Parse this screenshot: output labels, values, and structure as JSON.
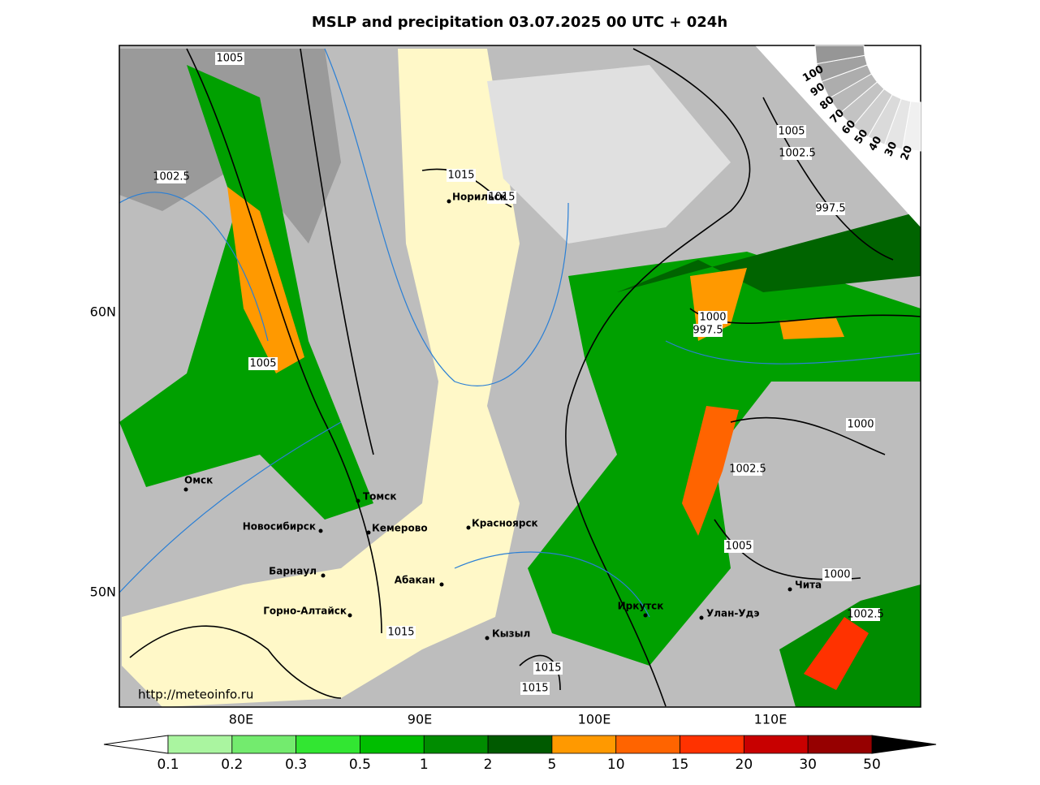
{
  "title": "MSLP and precipitation 03.07.2025 00 UTC + 024h",
  "lon_labels": [
    "80E",
    "90E",
    "100E",
    "110E"
  ],
  "lat_labels": [
    "60N",
    "50N"
  ],
  "cities": [
    "Норильск",
    "Омск",
    "Томск",
    "Новосибирск",
    "Кемерово",
    "Красноярск",
    "Барнаул",
    "Абакан",
    "Горно-Алтайск",
    "Кызыл",
    "Иркутск",
    "Улан-Удэ",
    "Чита"
  ],
  "isobar_labels": [
    1005,
    1002.5,
    1015,
    1015,
    1005,
    1005,
    1002.5,
    997.5,
    1000,
    997.5,
    1000,
    1002.5,
    1005,
    1000,
    1002.5,
    1015,
    1015,
    1015
  ],
  "cloud_scale": [
    100,
    90,
    80,
    70,
    60,
    50,
    40,
    30,
    20
  ],
  "colorbar": {
    "labels": [
      0.1,
      0.2,
      0.3,
      0.5,
      1,
      2,
      5,
      10,
      15,
      20,
      30,
      50
    ],
    "colors": [
      "#aaf5a0",
      "#73eb6e",
      "#32e632",
      "#00be00",
      "#008c00",
      "#005a00",
      "#ff9900",
      "#ff6400",
      "#ff3200",
      "#c80000",
      "#960000"
    ]
  },
  "source": "http://meteoinfo.ru"
}
